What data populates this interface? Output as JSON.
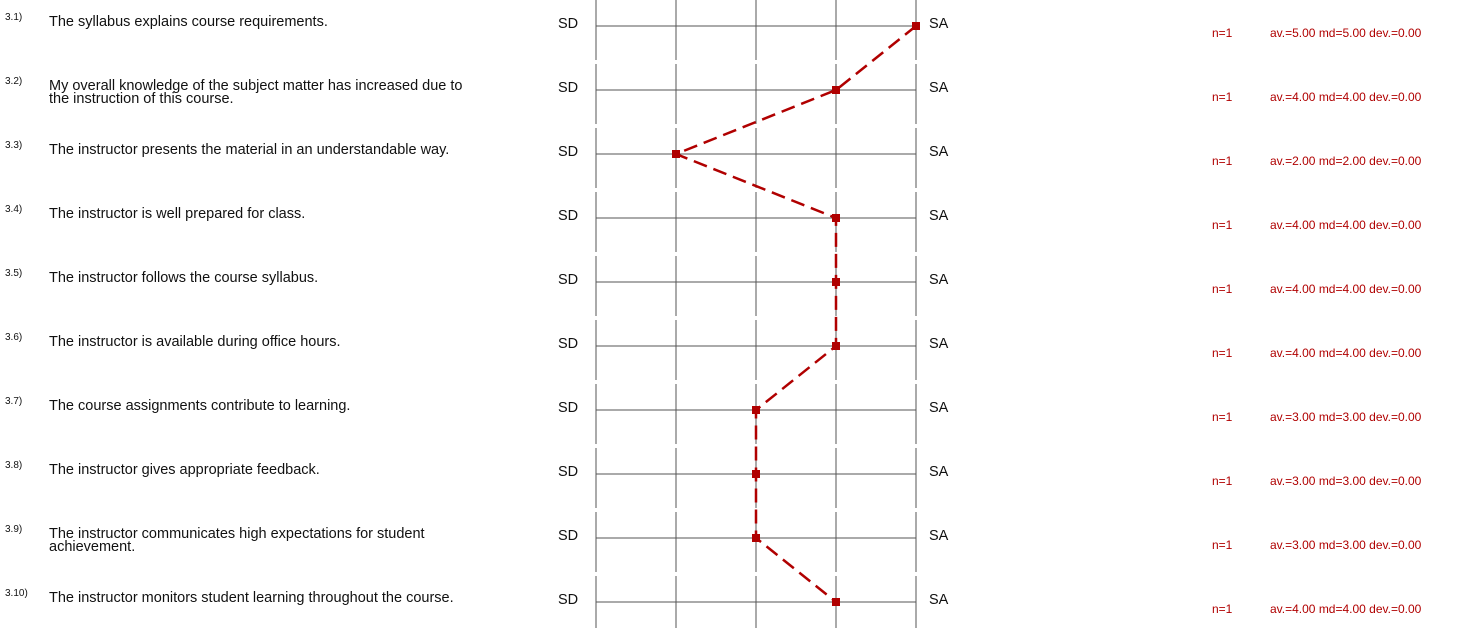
{
  "chart_data": {
    "type": "line",
    "scale_left_label": "SD",
    "scale_right_label": "SA",
    "scale_min": 1,
    "scale_max": 5,
    "accent_color": "#b00000",
    "items": [
      {
        "num": "3.1)",
        "text": "The syllabus explains course requirements.",
        "value": 5,
        "n": "n=1",
        "stats": "av.=5.00 md=5.00 dev.=0.00"
      },
      {
        "num": "3.2)",
        "text": "My overall knowledge of the subject matter has increased due to the instruction of this course.",
        "value": 4,
        "n": "n=1",
        "stats": "av.=4.00 md=4.00 dev.=0.00"
      },
      {
        "num": "3.3)",
        "text": "The instructor presents the material in an understandable way.",
        "value": 2,
        "n": "n=1",
        "stats": "av.=2.00 md=2.00 dev.=0.00"
      },
      {
        "num": "3.4)",
        "text": "The instructor is well prepared for class.",
        "value": 4,
        "n": "n=1",
        "stats": "av.=4.00 md=4.00 dev.=0.00"
      },
      {
        "num": "3.5)",
        "text": "The instructor follows the course syllabus.",
        "value": 4,
        "n": "n=1",
        "stats": "av.=4.00 md=4.00 dev.=0.00"
      },
      {
        "num": "3.6)",
        "text": "The instructor is available during office hours.",
        "value": 4,
        "n": "n=1",
        "stats": "av.=4.00 md=4.00 dev.=0.00"
      },
      {
        "num": "3.7)",
        "text": "The course assignments contribute to learning.",
        "value": 3,
        "n": "n=1",
        "stats": "av.=3.00 md=3.00 dev.=0.00"
      },
      {
        "num": "3.8)",
        "text": "The instructor gives appropriate feedback.",
        "value": 3,
        "n": "n=1",
        "stats": "av.=3.00 md=3.00 dev.=0.00"
      },
      {
        "num": "3.9)",
        "text": "The instructor communicates high expectations for student achievement.",
        "value": 3,
        "n": "n=1",
        "stats": "av.=3.00 md=3.00 dev.=0.00"
      },
      {
        "num": "3.10)",
        "text": "The instructor monitors student learning throughout the course.",
        "value": 4,
        "n": "n=1",
        "stats": "av.=4.00 md=4.00 dev.=0.00"
      }
    ]
  }
}
